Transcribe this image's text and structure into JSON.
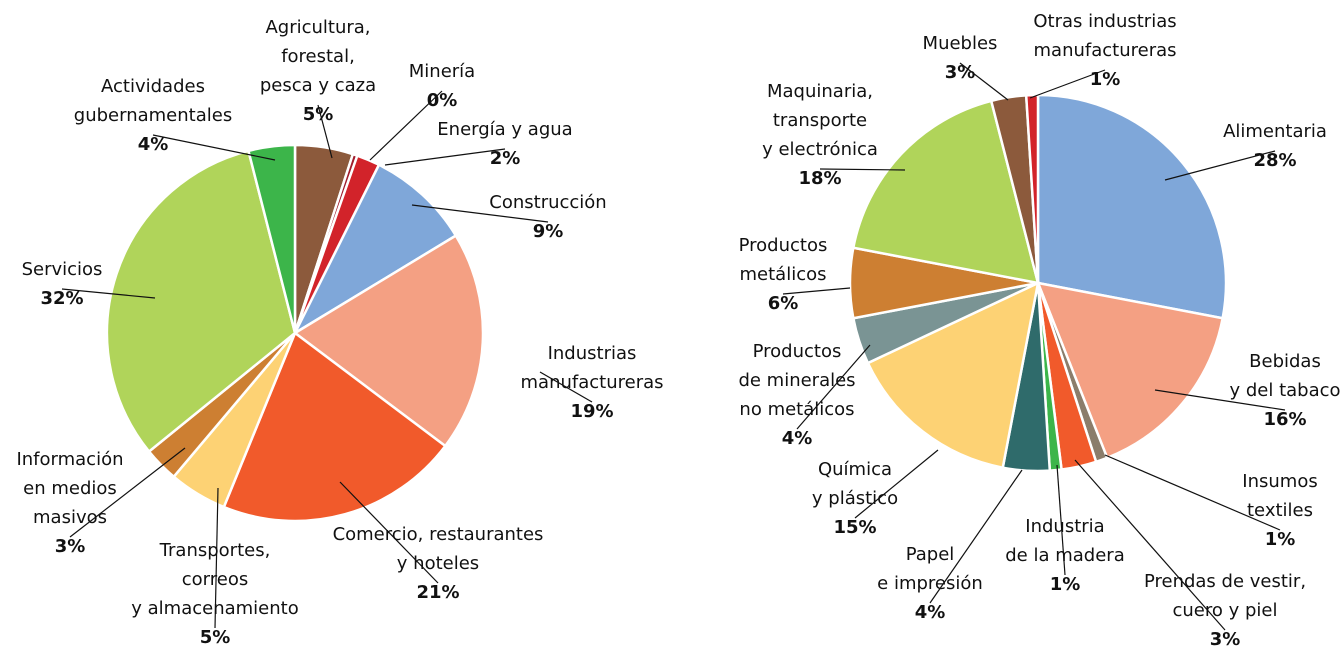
{
  "chart_data": [
    {
      "type": "pie",
      "categories": [
        [
          "Agricultura,",
          "forestal,",
          "pesca y caza"
        ],
        [
          "Minería"
        ],
        [
          "Energía y agua"
        ],
        [
          "Construcción"
        ],
        [
          "Industrias",
          "manufactureras"
        ],
        [
          "Comercio, restaurantes",
          "y hoteles"
        ],
        [
          "Transportes,",
          "correos",
          "y almacenamiento"
        ],
        [
          "Información",
          "en medios",
          "masivos"
        ],
        [
          "Servicios"
        ],
        [
          "Actividades",
          "gubernamentales"
        ]
      ],
      "values": [
        5,
        0.4,
        2,
        9,
        19,
        21,
        5,
        3,
        32,
        4
      ],
      "value_labels": [
        "5%",
        "0%",
        "2%",
        "9%",
        "19%",
        "21%",
        "5%",
        "3%",
        "32%",
        "4%"
      ],
      "colors": [
        "#8c5a3c",
        "#a01c2c",
        "#d2232a",
        "#7fa7d9",
        "#f4a083",
        "#f15a2b",
        "#fdd274",
        "#cd7f32",
        "#b0d45a",
        "#3cb54a"
      ]
    },
    {
      "type": "pie",
      "categories": [
        [
          "Alimentaria"
        ],
        [
          "Bebidas",
          "y del tabaco"
        ],
        [
          "Insumos",
          "textiles"
        ],
        [
          "Prendas de vestir,",
          "cuero y piel"
        ],
        [
          "Industria",
          "de la madera"
        ],
        [
          "Papel",
          "e impresión"
        ],
        [
          "Química",
          "y plástico"
        ],
        [
          "Productos",
          "de minerales",
          "no metálicos"
        ],
        [
          "Productos",
          "metálicos"
        ],
        [
          "Maquinaria,",
          "transporte",
          "y electrónica"
        ],
        [
          "Muebles"
        ],
        [
          "Otras industrias",
          "manufactureras"
        ]
      ],
      "values": [
        28,
        16,
        1,
        3,
        1,
        4,
        15,
        4,
        6,
        18,
        3,
        1
      ],
      "value_labels": [
        "28%",
        "16%",
        "1%",
        "3%",
        "1%",
        "4%",
        "15%",
        "4%",
        "6%",
        "18%",
        "3%",
        "1%"
      ],
      "colors": [
        "#7fa7d9",
        "#f4a083",
        "#8b7d6b",
        "#f15a2b",
        "#3cb54a",
        "#2f6b6b",
        "#fdd274",
        "#7a9494",
        "#cd7f32",
        "#b0d45a",
        "#8c5a3c",
        "#d2232a"
      ]
    }
  ]
}
